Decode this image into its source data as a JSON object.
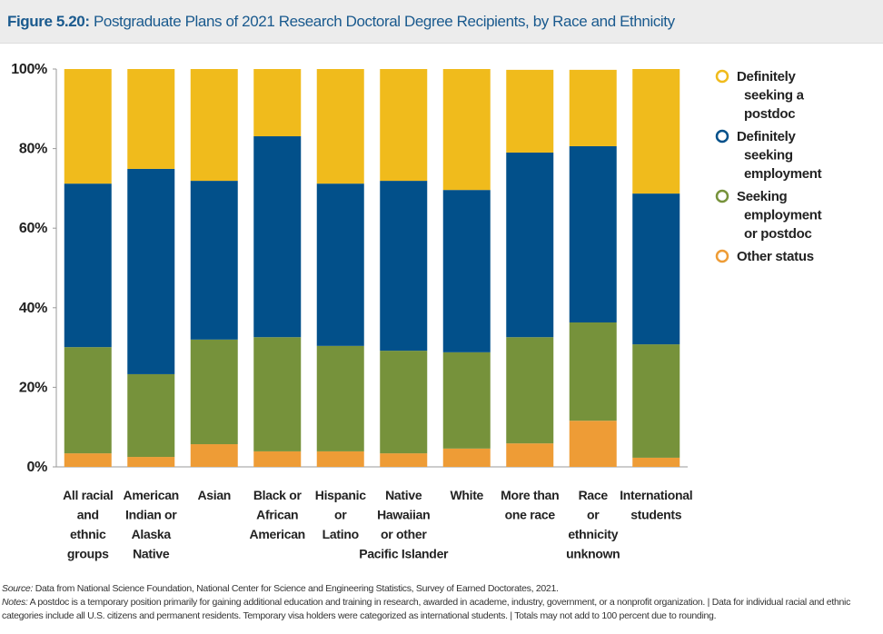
{
  "chart_data": {
    "type": "stacked_bar",
    "figure_label": "Figure 5.20:",
    "title": "Postgraduate Plans of 2021 Research Doctoral Degree Recipients, by Race and Ethnicity",
    "categories": [
      "All racial\nand\nethnic\ngroups",
      "American\nIndian or\nAlaska\nNative",
      "Asian",
      "Black or\nAfrican\nAmerican",
      "Hispanic\nor\nLatino",
      "Native\nHawaiian\nor other\nPacific Islander",
      "White",
      "More than\none race",
      "Race\nor\nethnicity\nunknown",
      "International\nstudents"
    ],
    "series": [
      {
        "name": "Definitely\nseeking a\npostdoc",
        "color": "#f0bb1c",
        "values": [
          28.8,
          25.1,
          28.1,
          16.9,
          28.8,
          28.1,
          30.4,
          20.8,
          19.2,
          31.3
        ]
      },
      {
        "name": "Definitely\nseeking\nemployment",
        "color": "#02508a",
        "values": [
          41.1,
          51.6,
          39.9,
          50.5,
          40.8,
          42.7,
          40.8,
          46.4,
          44.3,
          37.9
        ]
      },
      {
        "name": "Seeking\nemployment\nor postdoc",
        "color": "#76923b",
        "values": [
          26.7,
          20.8,
          26.3,
          28.7,
          26.5,
          25.8,
          24.2,
          26.7,
          24.7,
          28.5
        ]
      },
      {
        "name": "Other status",
        "color": "#ee9c36",
        "values": [
          3.4,
          2.5,
          5.7,
          3.9,
          3.9,
          3.4,
          4.6,
          5.9,
          11.6,
          2.3
        ]
      }
    ],
    "ylim": [
      0,
      100
    ],
    "yticks": [
      {
        "value": 0,
        "label": "0%"
      },
      {
        "value": 20,
        "label": "20%"
      },
      {
        "value": 40,
        "label": "40%"
      },
      {
        "value": 60,
        "label": "60%"
      },
      {
        "value": 80,
        "label": "80%"
      },
      {
        "value": 100,
        "label": "100%"
      }
    ],
    "legend_position": "right",
    "source_label": "Source:",
    "source": "Data from National Science Foundation, National Center for Science and Engineering Statistics, Survey of Earned Doctorates, 2021.",
    "notes_label": "Notes:",
    "notes": "A postdoc is a temporary position primarily for gaining additional education and training in research, awarded in academe, industry, government, or a nonprofit organization.  |  Data for individual racial and ethnic categories include all U.S. citizens and permanent residents. Temporary visa holders were categorized as international students.  |  Totals may not add to 100 percent due to rounding."
  }
}
